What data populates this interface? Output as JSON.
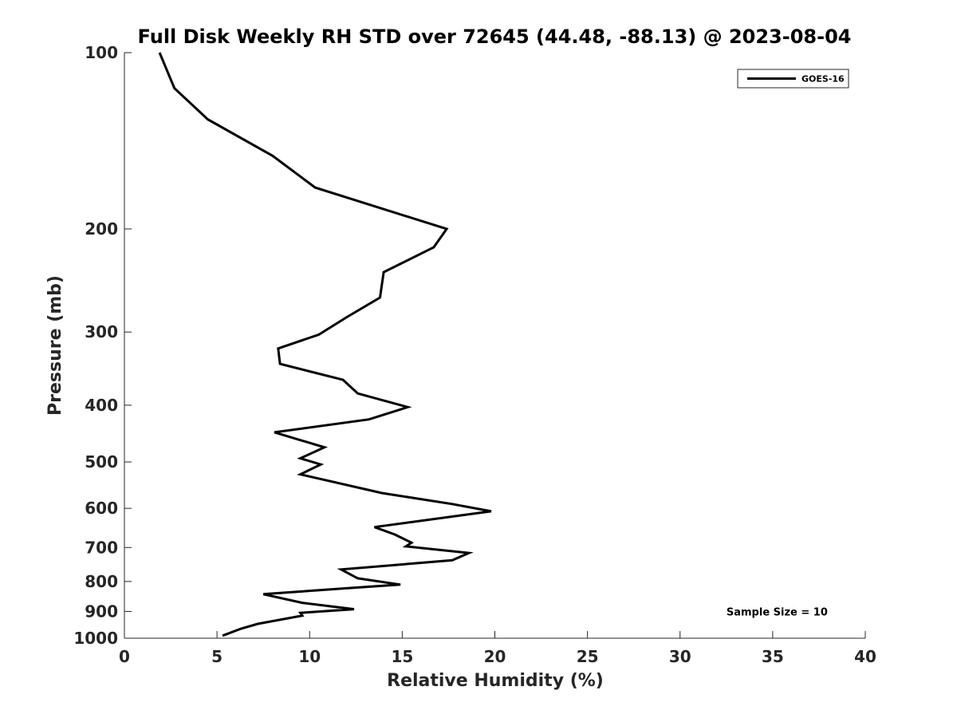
{
  "chart_data": {
    "type": "line",
    "title": "Full Disk Weekly RH STD over 72645 (44.48, -88.13) @ 2023-08-04",
    "xlabel": "Relative Humidity (%)",
    "ylabel": "Pressure (mb)",
    "xlim": [
      0,
      40
    ],
    "ylim": [
      100,
      1000
    ],
    "yscale": "log",
    "y_reversed": true,
    "xticks": [
      0,
      5,
      10,
      15,
      20,
      25,
      30,
      35,
      40
    ],
    "yticks": [
      100,
      200,
      300,
      400,
      500,
      600,
      700,
      800,
      900,
      1000
    ],
    "grid": false,
    "legend_position": "top-right",
    "series": [
      {
        "name": "GOES-16",
        "color": "#000000",
        "x": [
          1.9,
          2.7,
          4.5,
          8.0,
          10.3,
          17.4,
          16.7,
          14.0,
          13.8,
          12.0,
          10.5,
          8.3,
          8.4,
          11.8,
          12.6,
          15.3,
          13.2,
          8.1,
          10.8,
          9.5,
          10.6,
          9.5,
          13.9,
          17.7,
          19.8,
          13.5,
          14.6,
          15.5,
          15.2,
          18.6,
          17.7,
          11.7,
          12.6,
          14.9,
          11.9,
          7.5,
          9.6,
          12.4,
          9.5,
          9.6,
          7.2,
          6.3,
          5.3
        ],
        "y": [
          100,
          115,
          130,
          150,
          170,
          200,
          215,
          237,
          262,
          283,
          303,
          320,
          340,
          362,
          382,
          403,
          423,
          445,
          472,
          493,
          505,
          525,
          565,
          590,
          607,
          646,
          665,
          687,
          697,
          715,
          736,
          763,
          790,
          810,
          822,
          841,
          870,
          892,
          905,
          915,
          945,
          963,
          990
        ]
      }
    ],
    "annotations": [
      {
        "text": "Sample Size = 10",
        "x": 35,
        "y": 900
      }
    ]
  }
}
